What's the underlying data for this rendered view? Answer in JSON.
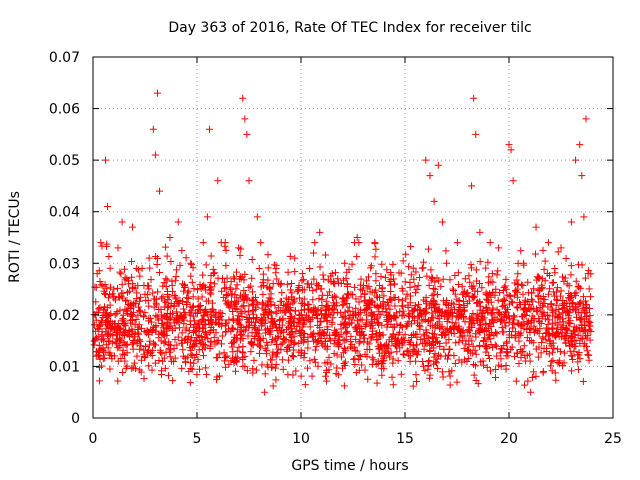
{
  "chart_data": {
    "type": "scatter",
    "title": "Day 363 of 2016, Rate Of TEC Index for receiver tilc",
    "xlabel": "GPS time / hours",
    "ylabel": "ROTI / TECUs",
    "xlim": [
      0,
      25
    ],
    "ylim": [
      0,
      0.07
    ],
    "x_ticks": [
      "0",
      "5",
      "10",
      "15",
      "20",
      "25"
    ],
    "y_ticks": [
      "0",
      "0.01",
      "0.02",
      "0.03",
      "0.04",
      "0.05",
      "0.06",
      "0.07"
    ],
    "x_tick_values": [
      0,
      5,
      10,
      15,
      20,
      25
    ],
    "y_tick_values": [
      0,
      0.01,
      0.02,
      0.03,
      0.04,
      0.05,
      0.06,
      0.07
    ],
    "grid": true,
    "marker": "plus",
    "color": "#ff0000",
    "series": [
      {
        "name": "ROTI",
        "points": [
          [
            0.1,
            0.015
          ],
          [
            0.2,
            0.028
          ],
          [
            0.3,
            0.012
          ],
          [
            0.5,
            0.021
          ],
          [
            0.6,
            0.05
          ],
          [
            0.7,
            0.041
          ],
          [
            0.8,
            0.018
          ],
          [
            1.0,
            0.025
          ],
          [
            1.2,
            0.033
          ],
          [
            1.4,
            0.038
          ],
          [
            1.5,
            0.016
          ],
          [
            1.7,
            0.022
          ],
          [
            1.9,
            0.037
          ],
          [
            2.1,
            0.029
          ],
          [
            2.3,
            0.014
          ],
          [
            2.5,
            0.024
          ],
          [
            2.7,
            0.031
          ],
          [
            2.9,
            0.056
          ],
          [
            3.0,
            0.051
          ],
          [
            3.1,
            0.063
          ],
          [
            3.2,
            0.044
          ],
          [
            3.3,
            0.02
          ],
          [
            3.5,
            0.027
          ],
          [
            3.7,
            0.035
          ],
          [
            3.9,
            0.019
          ],
          [
            4.1,
            0.038
          ],
          [
            4.3,
            0.026
          ],
          [
            4.5,
            0.022
          ],
          [
            4.7,
            0.03
          ],
          [
            4.9,
            0.017
          ],
          [
            5.1,
            0.021
          ],
          [
            5.3,
            0.034
          ],
          [
            5.5,
            0.039
          ],
          [
            5.6,
            0.056
          ],
          [
            5.8,
            0.028
          ],
          [
            6.0,
            0.046
          ],
          [
            6.2,
            0.019
          ],
          [
            6.5,
            0.024
          ],
          [
            6.8,
            0.027
          ],
          [
            7.0,
            0.033
          ],
          [
            7.2,
            0.062
          ],
          [
            7.3,
            0.058
          ],
          [
            7.4,
            0.055
          ],
          [
            7.5,
            0.046
          ],
          [
            7.7,
            0.022
          ],
          [
            7.9,
            0.039
          ],
          [
            8.2,
            0.02
          ],
          [
            8.5,
            0.025
          ],
          [
            8.8,
            0.029
          ],
          [
            9.1,
            0.018
          ],
          [
            9.4,
            0.023
          ],
          [
            9.7,
            0.031
          ],
          [
            10.0,
            0.017
          ],
          [
            10.3,
            0.026
          ],
          [
            10.6,
            0.032
          ],
          [
            10.9,
            0.036
          ],
          [
            11.2,
            0.021
          ],
          [
            11.5,
            0.028
          ],
          [
            11.8,
            0.015
          ],
          [
            12.1,
            0.03
          ],
          [
            12.4,
            0.024
          ],
          [
            12.7,
            0.035
          ],
          [
            13.0,
            0.016
          ],
          [
            13.3,
            0.022
          ],
          [
            13.6,
            0.028
          ],
          [
            13.9,
            0.012
          ],
          [
            14.2,
            0.02
          ],
          [
            14.5,
            0.026
          ],
          [
            14.8,
            0.018
          ],
          [
            15.1,
            0.024
          ],
          [
            15.4,
            0.014
          ],
          [
            15.7,
            0.021
          ],
          [
            16.0,
            0.05
          ],
          [
            16.2,
            0.047
          ],
          [
            16.4,
            0.042
          ],
          [
            16.6,
            0.049
          ],
          [
            16.8,
            0.038
          ],
          [
            17.0,
            0.03
          ],
          [
            17.3,
            0.025
          ],
          [
            17.6,
            0.022
          ],
          [
            17.9,
            0.027
          ],
          [
            18.2,
            0.045
          ],
          [
            18.3,
            0.062
          ],
          [
            18.4,
            0.055
          ],
          [
            18.6,
            0.036
          ],
          [
            18.9,
            0.024
          ],
          [
            19.2,
            0.028
          ],
          [
            19.5,
            0.033
          ],
          [
            19.8,
            0.02
          ],
          [
            20.0,
            0.053
          ],
          [
            20.1,
            0.052
          ],
          [
            20.2,
            0.046
          ],
          [
            20.4,
            0.025
          ],
          [
            20.7,
            0.03
          ],
          [
            21.0,
            0.022
          ],
          [
            21.3,
            0.037
          ],
          [
            21.6,
            0.027
          ],
          [
            21.9,
            0.024
          ],
          [
            22.2,
            0.029
          ],
          [
            22.5,
            0.033
          ],
          [
            22.8,
            0.026
          ],
          [
            23.0,
            0.038
          ],
          [
            23.2,
            0.05
          ],
          [
            23.4,
            0.053
          ],
          [
            23.5,
            0.047
          ],
          [
            23.6,
            0.039
          ],
          [
            23.7,
            0.058
          ],
          [
            23.8,
            0.028
          ]
        ]
      }
    ],
    "dense_band": {
      "x_start": 0.05,
      "x_end": 23.95,
      "y_median": 0.018,
      "y_spread": 0.006,
      "count": 2600
    }
  }
}
